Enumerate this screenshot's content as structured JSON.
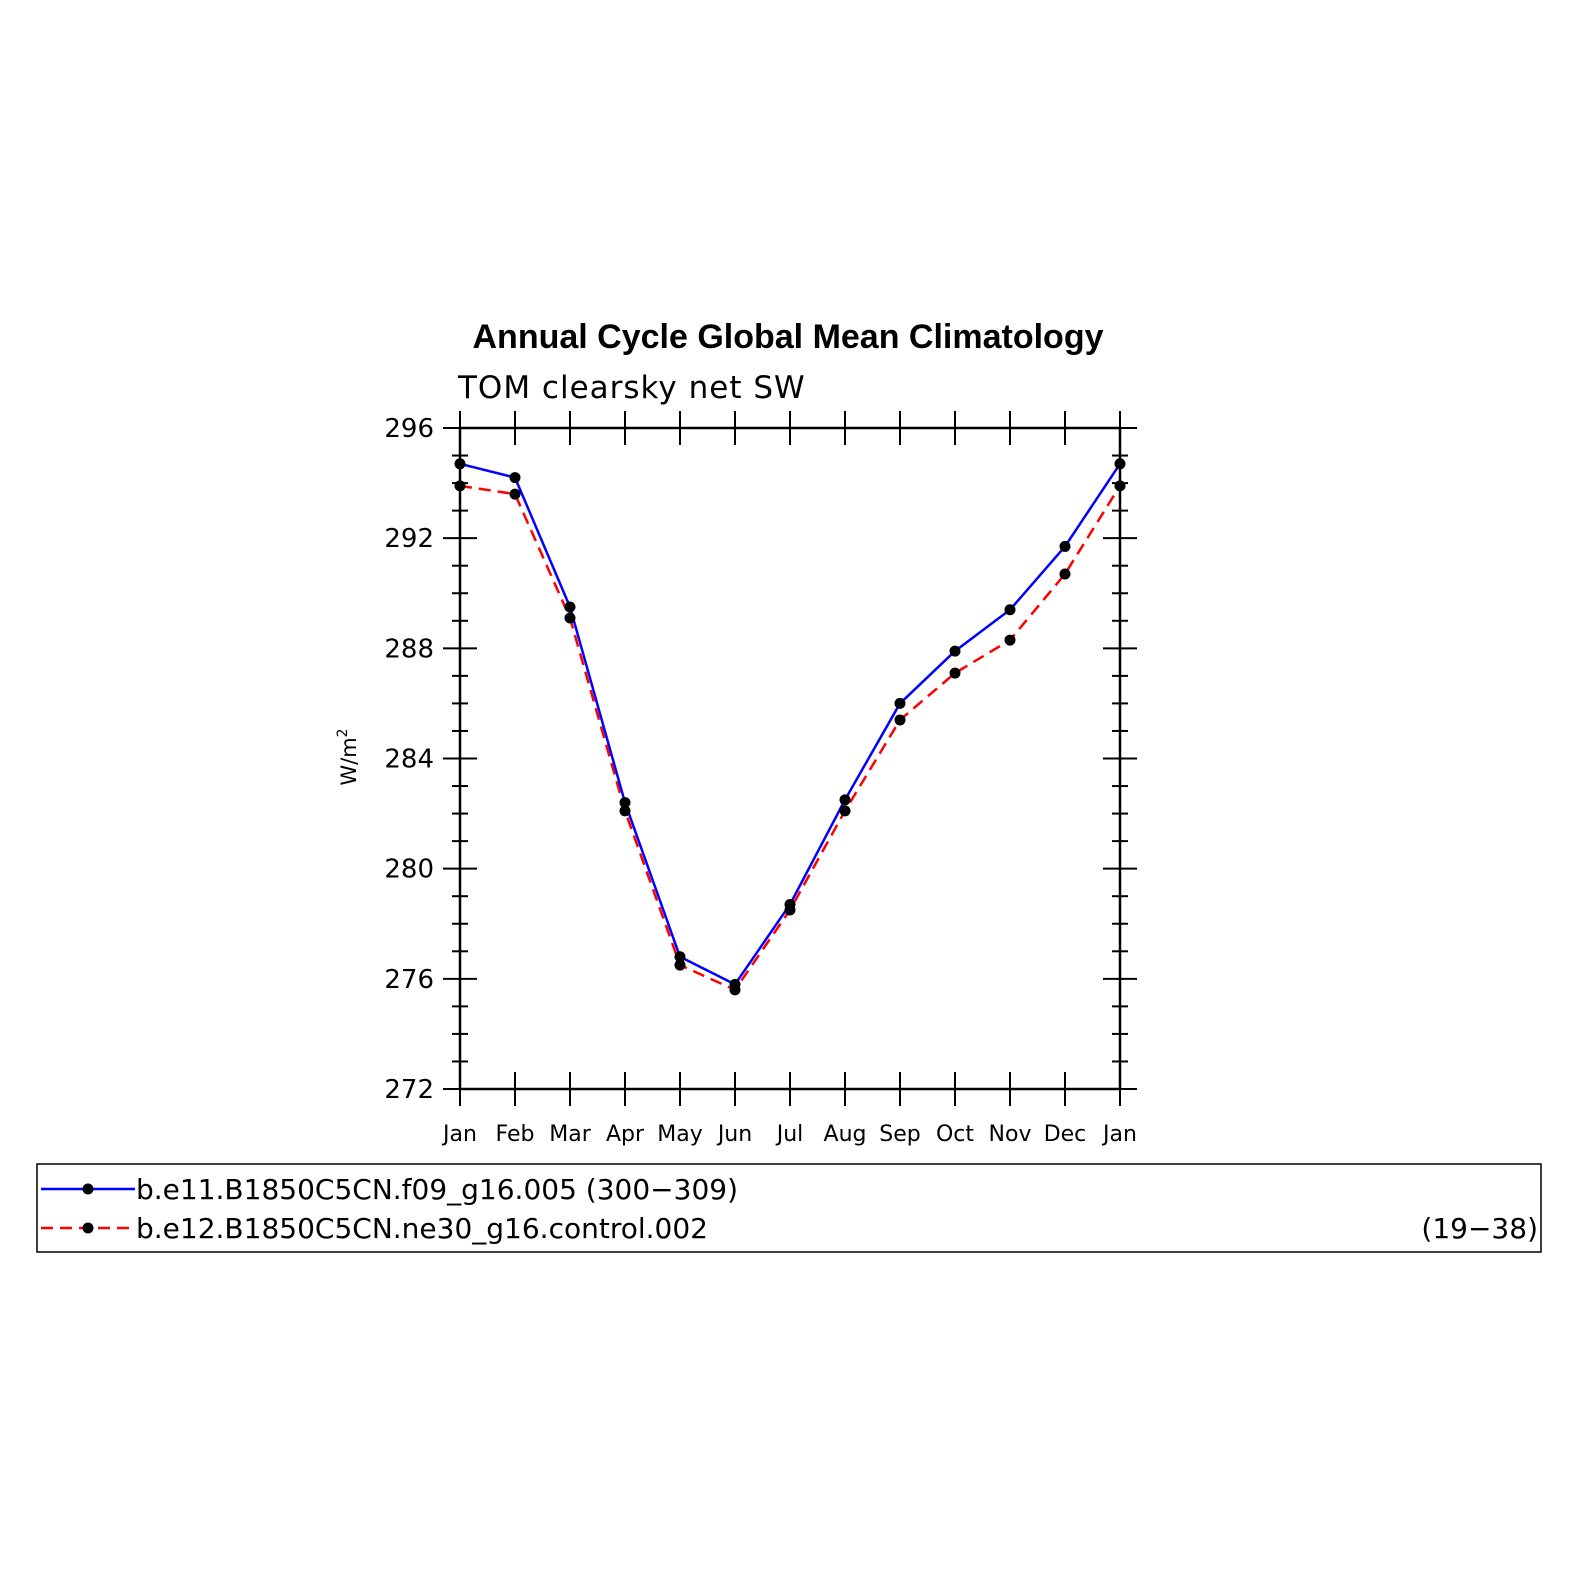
{
  "chart_data": {
    "type": "line",
    "title": "Annual Cycle Global Mean Climatology",
    "subtitle": "TOM clearsky net SW",
    "ylabel": "W/m",
    "ylabel_sup": "2",
    "xlabel": "",
    "ylim": [
      272,
      296
    ],
    "yticks": [
      "272",
      "276",
      "280",
      "284",
      "288",
      "292",
      "296"
    ],
    "categories": [
      "Jan",
      "Feb",
      "Mar",
      "Apr",
      "May",
      "Jun",
      "Jul",
      "Aug",
      "Sep",
      "Oct",
      "Nov",
      "Dec",
      "Jan"
    ],
    "series": [
      {
        "name": "b.e11.B1850C5CN.f09_g16.005",
        "years": "(300−309)",
        "color": "#0000ff",
        "dash": "solid",
        "values": [
          294.7,
          294.2,
          289.5,
          282.4,
          276.8,
          275.8,
          278.7,
          282.5,
          286.0,
          287.9,
          289.4,
          291.7,
          294.7
        ]
      },
      {
        "name": "b.e12.B1850C5CN.ne30_g16.control.002",
        "years": "(19−38)",
        "color": "#ff0000",
        "dash": "dashed",
        "values": [
          293.9,
          293.6,
          289.1,
          282.1,
          276.5,
          275.6,
          278.5,
          282.1,
          285.4,
          287.1,
          288.3,
          290.7,
          293.9
        ]
      }
    ],
    "marker_color": "#000000",
    "grid": false,
    "legend_position": "bottom"
  }
}
